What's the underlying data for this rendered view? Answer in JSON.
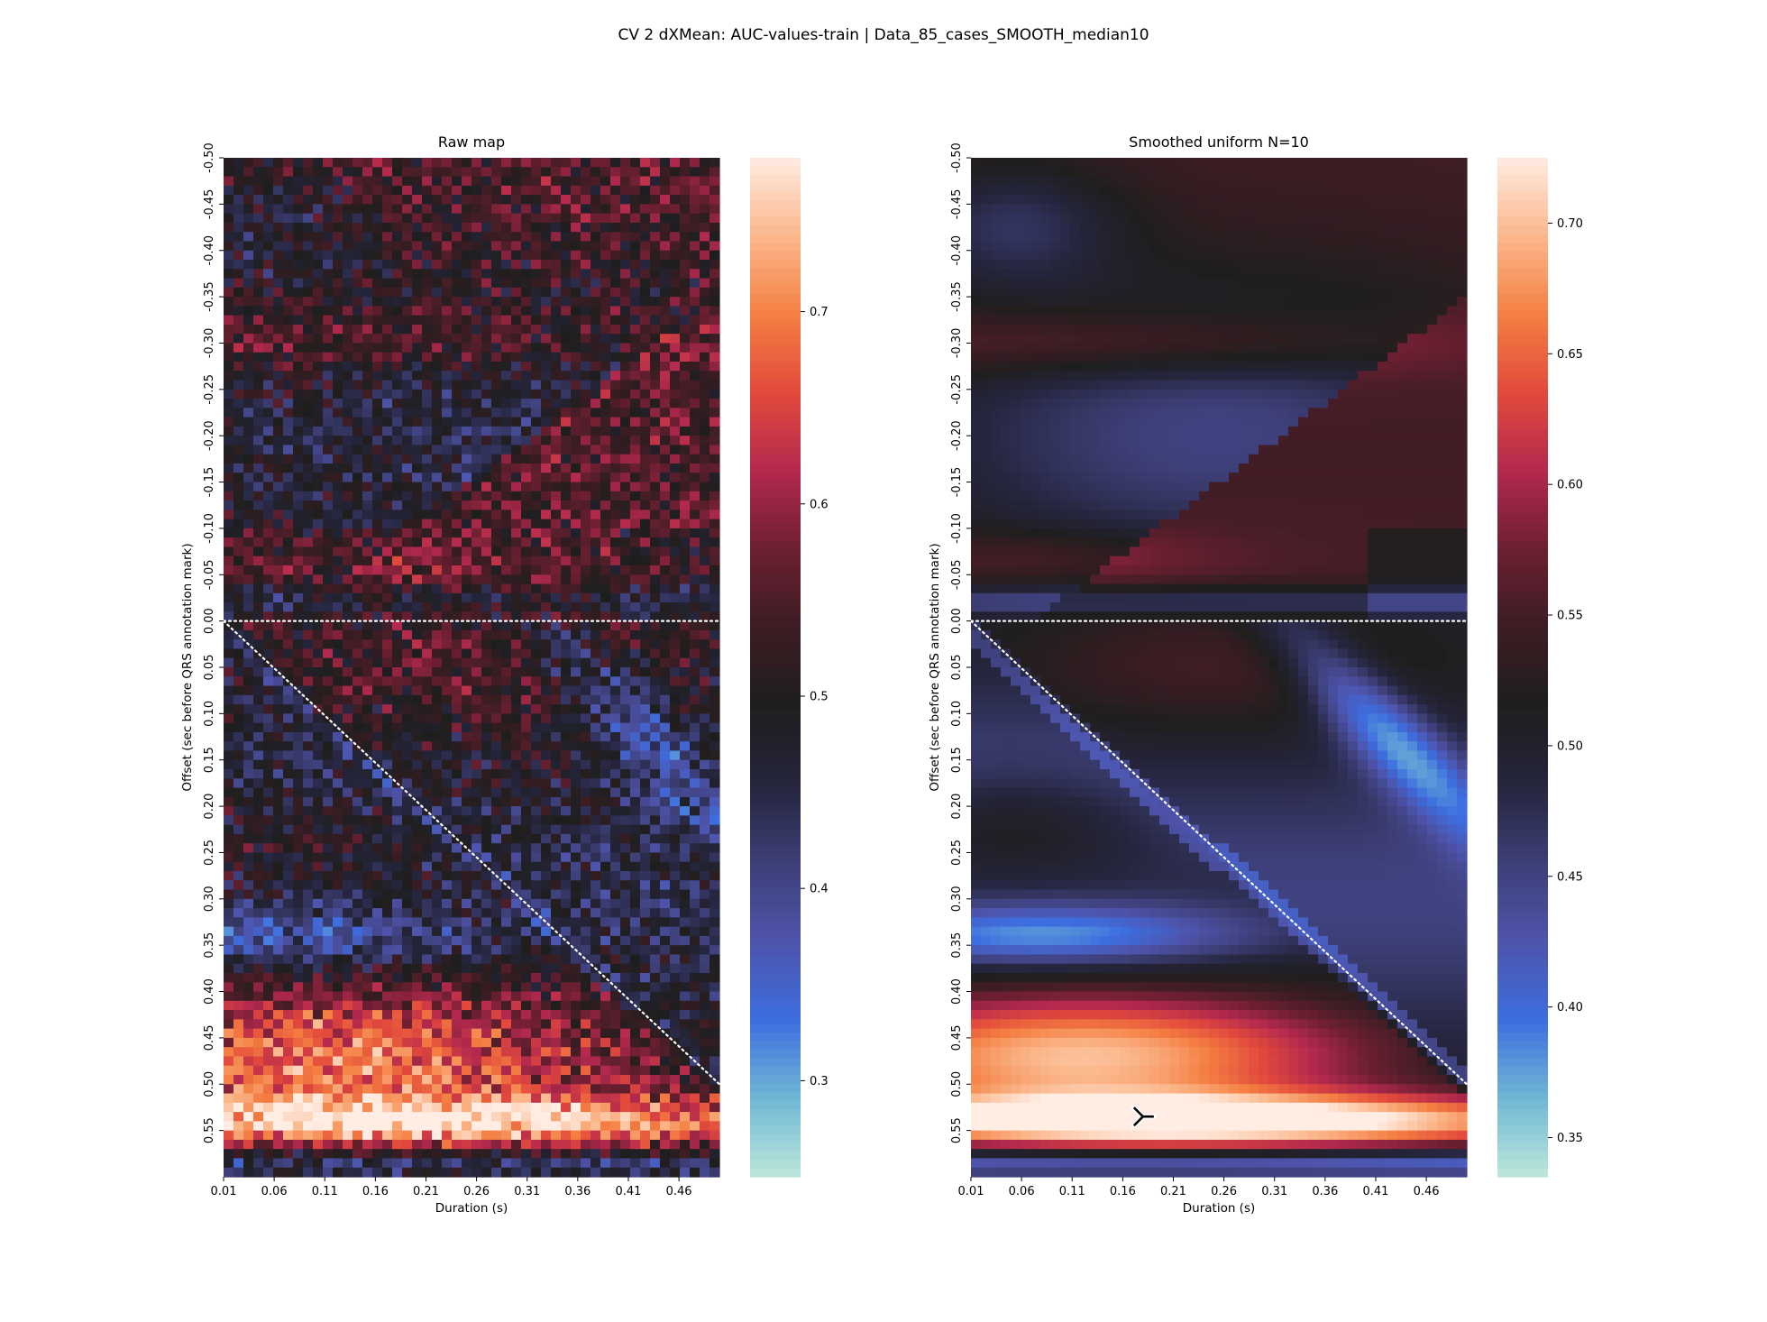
{
  "figure": {
    "suptitle": "CV 2 dXMean: AUC-values-train | Data_85_cases_SMOOTH_median10"
  },
  "colors": {
    "colormap": "icefire",
    "stops": [
      "#bde7db",
      "#6fb7d4",
      "#3d6ee0",
      "#4e54ac",
      "#3d3f77",
      "#25253d",
      "#1f1e1e",
      "#3b1d23",
      "#6d1f31",
      "#b3294e",
      "#e2493c",
      "#f47f42",
      "#fbb78b",
      "#ffece3"
    ],
    "dotted_line": "#ffffff",
    "marker": "#000000"
  },
  "chart_data": [
    {
      "type": "heatmap",
      "title": "Raw map",
      "xlabel": "Duration (s)",
      "ylabel": "Offset (sec before QRS annotation mark)",
      "xlim": [
        0.01,
        0.5
      ],
      "ylim": [
        -0.5,
        0.6
      ],
      "x_ticks": [
        "0.01",
        "0.06",
        "0.11",
        "0.16",
        "0.21",
        "0.26",
        "0.31",
        "0.36",
        "0.41",
        "0.46"
      ],
      "y_ticks": [
        "-0.50",
        "-0.45",
        "-0.40",
        "-0.35",
        "-0.30",
        "-0.25",
        "-0.20",
        "-0.15",
        "-0.10",
        "-0.05",
        "0.00",
        "0.05",
        "0.10",
        "0.15",
        "0.20",
        "0.25",
        "0.30",
        "0.35",
        "0.40",
        "0.45",
        "0.50",
        "0.55"
      ],
      "smoothed": false,
      "grid": false,
      "colorbar": {
        "vmin": 0.25,
        "vmax": 0.78,
        "ticks": [
          "0.3",
          "0.4",
          "0.5",
          "0.6",
          "0.7"
        ]
      },
      "reference_lines": [
        {
          "name": "offset-zero-line",
          "from": [
            0.01,
            0.0
          ],
          "to": [
            0.5,
            0.0
          ]
        },
        {
          "name": "diagonal-line",
          "from": [
            0.01,
            0.0
          ],
          "to": [
            0.5,
            0.5
          ]
        }
      ],
      "features": [
        {
          "region": "upper-left band",
          "value": 0.43
        },
        {
          "region": "lower band 0.40-0.55",
          "value": 0.72
        },
        {
          "region": "peak near offset 0.54",
          "value": 0.77
        }
      ]
    },
    {
      "type": "heatmap",
      "title": "Smoothed uniform N=10",
      "xlabel": "Duration (s)",
      "ylabel": "Offset (sec before QRS annotation mark)",
      "xlim": [
        0.01,
        0.5
      ],
      "ylim": [
        -0.5,
        0.6
      ],
      "x_ticks": [
        "0.01",
        "0.06",
        "0.11",
        "0.16",
        "0.21",
        "0.26",
        "0.31",
        "0.36",
        "0.41",
        "0.46"
      ],
      "y_ticks": [
        "-0.50",
        "-0.45",
        "-0.40",
        "-0.35",
        "-0.30",
        "-0.25",
        "-0.20",
        "-0.15",
        "-0.10",
        "-0.05",
        "0.00",
        "0.05",
        "0.10",
        "0.15",
        "0.20",
        "0.25",
        "0.30",
        "0.35",
        "0.40",
        "0.45",
        "0.50",
        "0.55"
      ],
      "smoothed": true,
      "grid": false,
      "colorbar": {
        "vmin": 0.335,
        "vmax": 0.725,
        "ticks": [
          "0.35",
          "0.40",
          "0.45",
          "0.50",
          "0.55",
          "0.60",
          "0.65",
          "0.70"
        ]
      },
      "reference_lines": [
        {
          "name": "offset-zero-line",
          "from": [
            0.01,
            0.0
          ],
          "to": [
            0.5,
            0.0
          ]
        },
        {
          "name": "diagonal-line",
          "from": [
            0.01,
            0.0
          ],
          "to": [
            0.5,
            0.5
          ]
        }
      ],
      "marker": {
        "x": 0.18,
        "y": 0.535,
        "shape": "tri-right"
      }
    }
  ]
}
